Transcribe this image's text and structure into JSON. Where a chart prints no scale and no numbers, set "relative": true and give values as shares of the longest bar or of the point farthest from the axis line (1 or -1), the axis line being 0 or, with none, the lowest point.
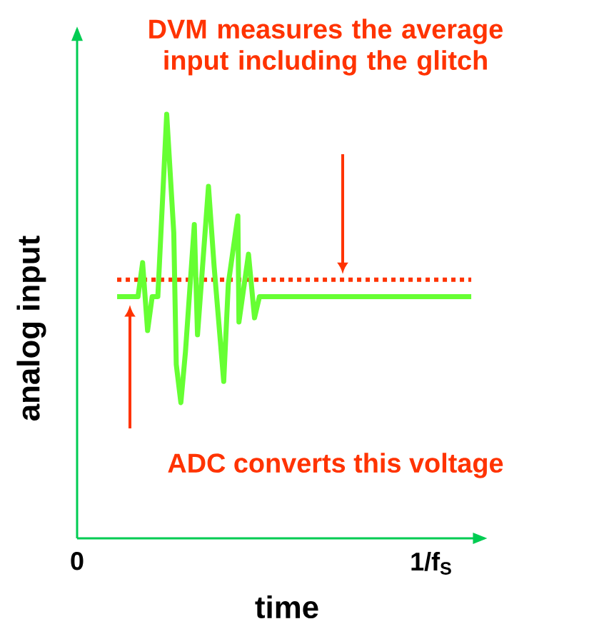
{
  "chart_data": {
    "type": "line",
    "xlabel": "time",
    "ylabel": "analog input",
    "relative": true,
    "xlim": [
      0,
      1.15
    ],
    "xticks": [
      0,
      {
        "value": 1,
        "label": "1/f$_{S}$"
      }
    ],
    "marker": "none",
    "line_style": "solid",
    "series": [
      {
        "color": "#66ff33",
        "x": [
          0.113,
          0.172,
          0.185,
          0.199,
          0.212,
          0.228,
          0.253,
          0.273,
          0.28,
          0.293,
          0.306,
          0.331,
          0.34,
          0.371,
          0.387,
          0.414,
          0.427,
          0.454,
          0.457,
          0.484,
          0.501,
          0.515,
          1.113
        ],
        "values": [
          0.57,
          0.57,
          0.65,
          0.49,
          0.57,
          0.57,
          1.0,
          0.72,
          0.41,
          0.32,
          0.44,
          0.74,
          0.48,
          0.83,
          0.64,
          0.37,
          0.6,
          0.76,
          0.51,
          0.67,
          0.52,
          0.57,
          0.57
        ]
      }
    ],
    "ref_lines": [
      {
        "axis": "y",
        "value": 0.61,
        "color": "#ff3300",
        "line_style": "dotted"
      }
    ],
    "annotations": [
      "DVM measures the average input including the glitch",
      "ADC converts this voltage"
    ]
  }
}
